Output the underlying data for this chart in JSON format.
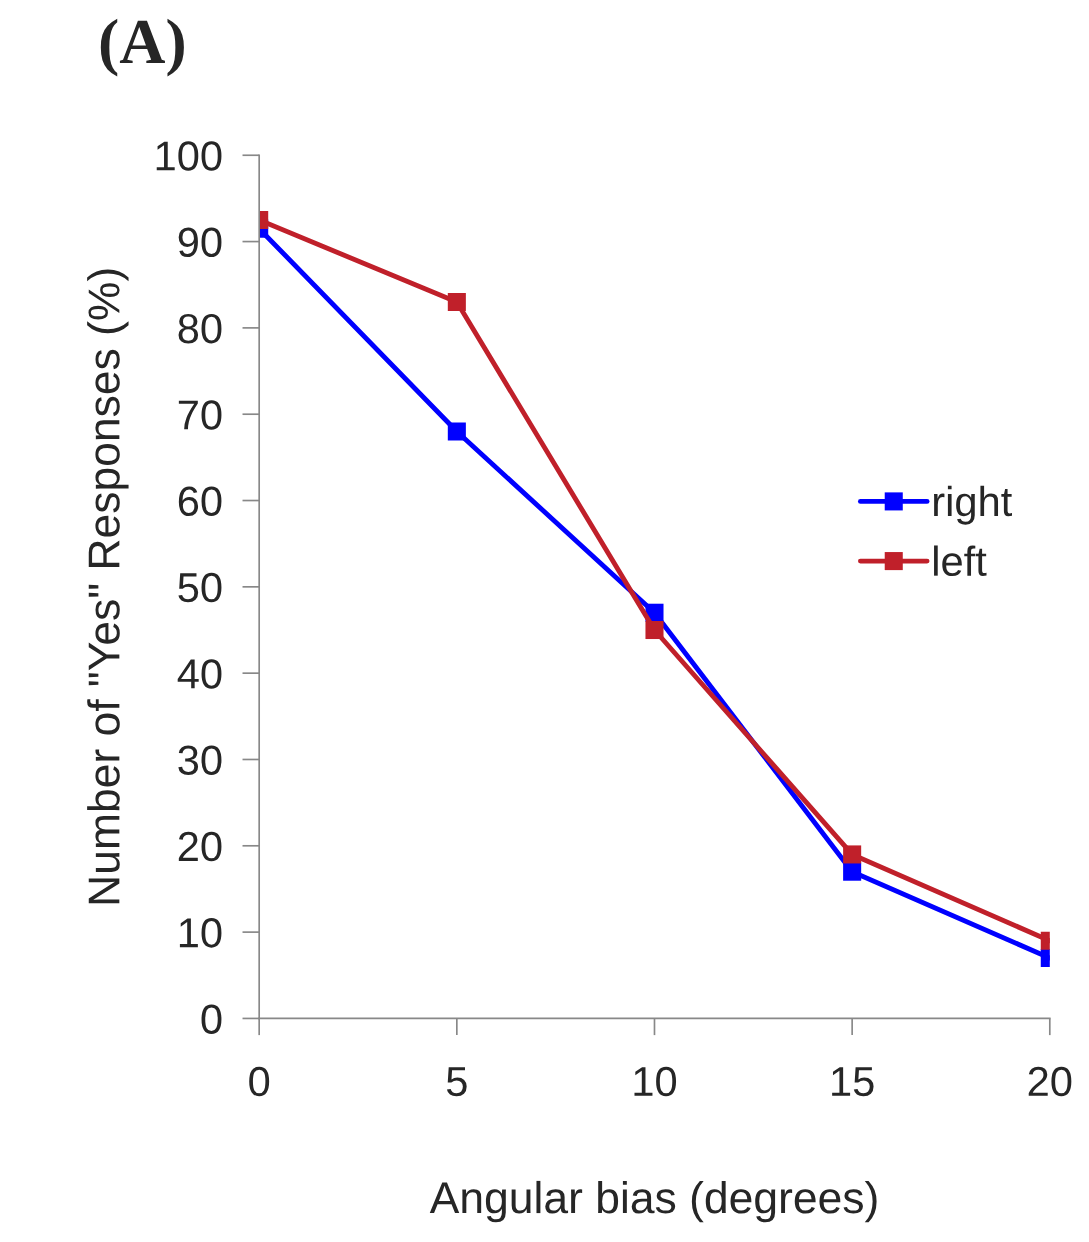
{
  "chart_data": {
    "type": "line",
    "title": "(A)",
    "xlabel": "Angular bias (degrees)",
    "ylabel": "Number of \"Yes\" Responses (%)",
    "x": [
      0,
      5,
      10,
      15,
      20
    ],
    "series": [
      {
        "name": "right",
        "color": "#0000ff",
        "values": [
          91.5,
          68,
          47,
          17,
          7
        ]
      },
      {
        "name": "left",
        "color": "#c0202a",
        "values": [
          92.5,
          83,
          45,
          19,
          9
        ]
      }
    ],
    "xlim": [
      0,
      20
    ],
    "xticks": [
      0,
      5,
      10,
      15,
      20
    ],
    "ylim": [
      0,
      100
    ],
    "yticks": [
      0,
      10,
      20,
      30,
      40,
      50,
      60,
      70,
      80,
      90,
      100
    ],
    "grid": false,
    "legend": "right",
    "marker": "square",
    "line_style": "solid"
  }
}
